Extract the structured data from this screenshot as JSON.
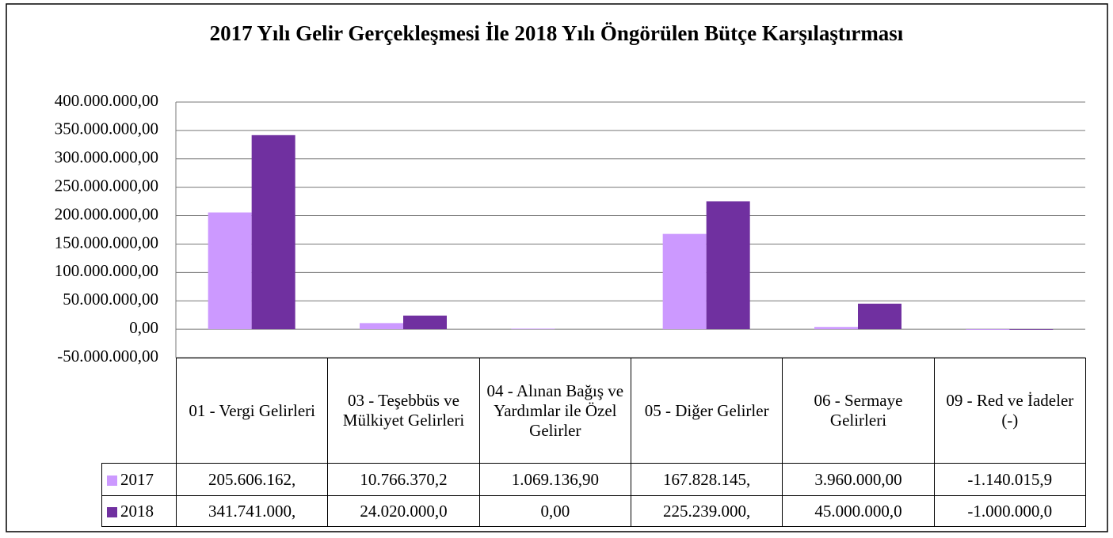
{
  "chart_data": {
    "type": "bar",
    "title": "2017 Yılı Gelir Gerçekleşmesi İle 2018 Yılı Öngörülen Bütçe Karşılaştırması",
    "categories": [
      "01 - Vergi Gelirleri",
      "03 - Teşebbüs ve Mülkiyet Gelirleri",
      "04 - Alınan Bağış ve Yardımlar ile Özel Gelirler",
      "05 - Diğer Gelirler",
      "06 - Sermaye Gelirleri",
      "09 - Red ve İadeler (-)"
    ],
    "series": [
      {
        "name": "2017",
        "color": "#cc99ff",
        "values": [
          205606162,
          10766370.2,
          1069136.9,
          167828145,
          3960000,
          -1140015.9
        ],
        "value_labels": [
          "205.606.162,",
          "10.766.370,2",
          "1.069.136,90",
          "167.828.145,",
          "3.960.000,00",
          "-1.140.015,9"
        ]
      },
      {
        "name": "2018",
        "color": "#7030a0",
        "values": [
          341741000,
          24020000,
          0,
          225239000,
          45000000,
          -1000000
        ],
        "value_labels": [
          "341.741.000,",
          "24.020.000,0",
          "0,00",
          "225.239.000,",
          "45.000.000,0",
          "-1.000.000,0"
        ]
      }
    ],
    "ylim": [
      -50000000,
      400000000
    ],
    "yticks": [
      {
        "value": -50000000,
        "label": "-50.000.000,00"
      },
      {
        "value": 0,
        "label": "0,00"
      },
      {
        "value": 50000000,
        "label": "50.000.000,00"
      },
      {
        "value": 100000000,
        "label": "100.000.000,00"
      },
      {
        "value": 150000000,
        "label": "150.000.000,00"
      },
      {
        "value": 200000000,
        "label": "200.000.000,00"
      },
      {
        "value": 250000000,
        "label": "250.000.000,00"
      },
      {
        "value": 300000000,
        "label": "300.000.000,00"
      },
      {
        "value": 350000000,
        "label": "350.000.000,00"
      },
      {
        "value": 400000000,
        "label": "400.000.000,00"
      }
    ],
    "grid": true
  }
}
